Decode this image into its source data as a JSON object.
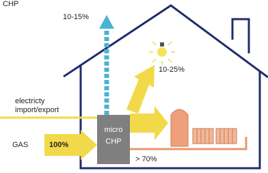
{
  "title": "CHP",
  "flows": {
    "heat_loss": "10-15%",
    "light": "10-25%",
    "electricity": [
      "electricty",
      "import/export"
    ],
    "gas": "GAS",
    "gas_input": "100%",
    "unit": [
      "micro",
      "CHP"
    ],
    "heating": "> 70%"
  }
}
